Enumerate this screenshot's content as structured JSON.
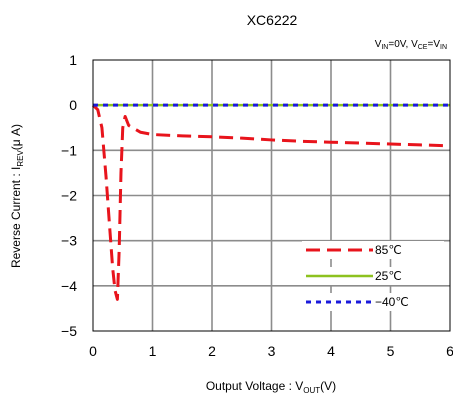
{
  "chart_data": {
    "type": "line",
    "title": "XC6222",
    "condition": {
      "v1": "V",
      "v1_sub": "IN",
      "v1_val": "=0V, ",
      "v2": "V",
      "v2_sub": "CE",
      "v2_eq": "=",
      "v3": "V",
      "v3_sub": "IN"
    },
    "xlabel": {
      "main": "Output Voltage : V",
      "sub": "OUT",
      "unit": "(V)"
    },
    "ylabel": {
      "main": "Reverse Current : I",
      "sub": "REV",
      "unit": "(μ A)"
    },
    "xlim": [
      0,
      6
    ],
    "ylim": [
      -5,
      1
    ],
    "x_ticks": [
      "0",
      "1",
      "2",
      "3",
      "4",
      "5",
      "6"
    ],
    "y_ticks": [
      "1",
      "0",
      "−1",
      "−2",
      "−3",
      "−4",
      "−5"
    ],
    "grid": true,
    "legend_position": "bottom-right",
    "series": [
      {
        "name": "85℃",
        "color": "#e8141c",
        "style": "dashed",
        "points": [
          [
            0,
            0
          ],
          [
            0.08,
            -0.1
          ],
          [
            0.15,
            -0.5
          ],
          [
            0.22,
            -1.6
          ],
          [
            0.28,
            -2.7
          ],
          [
            0.33,
            -3.6
          ],
          [
            0.37,
            -4.1
          ],
          [
            0.41,
            -4.3
          ],
          [
            0.44,
            -3.2
          ],
          [
            0.47,
            -1.5
          ],
          [
            0.5,
            -0.5
          ],
          [
            0.54,
            -0.25
          ],
          [
            0.6,
            -0.45
          ],
          [
            0.8,
            -0.6
          ],
          [
            1.0,
            -0.65
          ],
          [
            1.5,
            -0.68
          ],
          [
            2.0,
            -0.7
          ],
          [
            2.5,
            -0.73
          ],
          [
            3.0,
            -0.77
          ],
          [
            3.5,
            -0.8
          ],
          [
            4.0,
            -0.82
          ],
          [
            4.5,
            -0.84
          ],
          [
            5.0,
            -0.86
          ],
          [
            5.5,
            -0.88
          ],
          [
            6.0,
            -0.9
          ]
        ]
      },
      {
        "name": "25℃",
        "color": "#8dc21f",
        "style": "solid",
        "points": [
          [
            0,
            0
          ],
          [
            6,
            0
          ]
        ]
      },
      {
        "name": "−40℃",
        "color": "#1a1adb",
        "style": "dotted",
        "points": [
          [
            0,
            0
          ],
          [
            6,
            0
          ]
        ]
      }
    ]
  }
}
